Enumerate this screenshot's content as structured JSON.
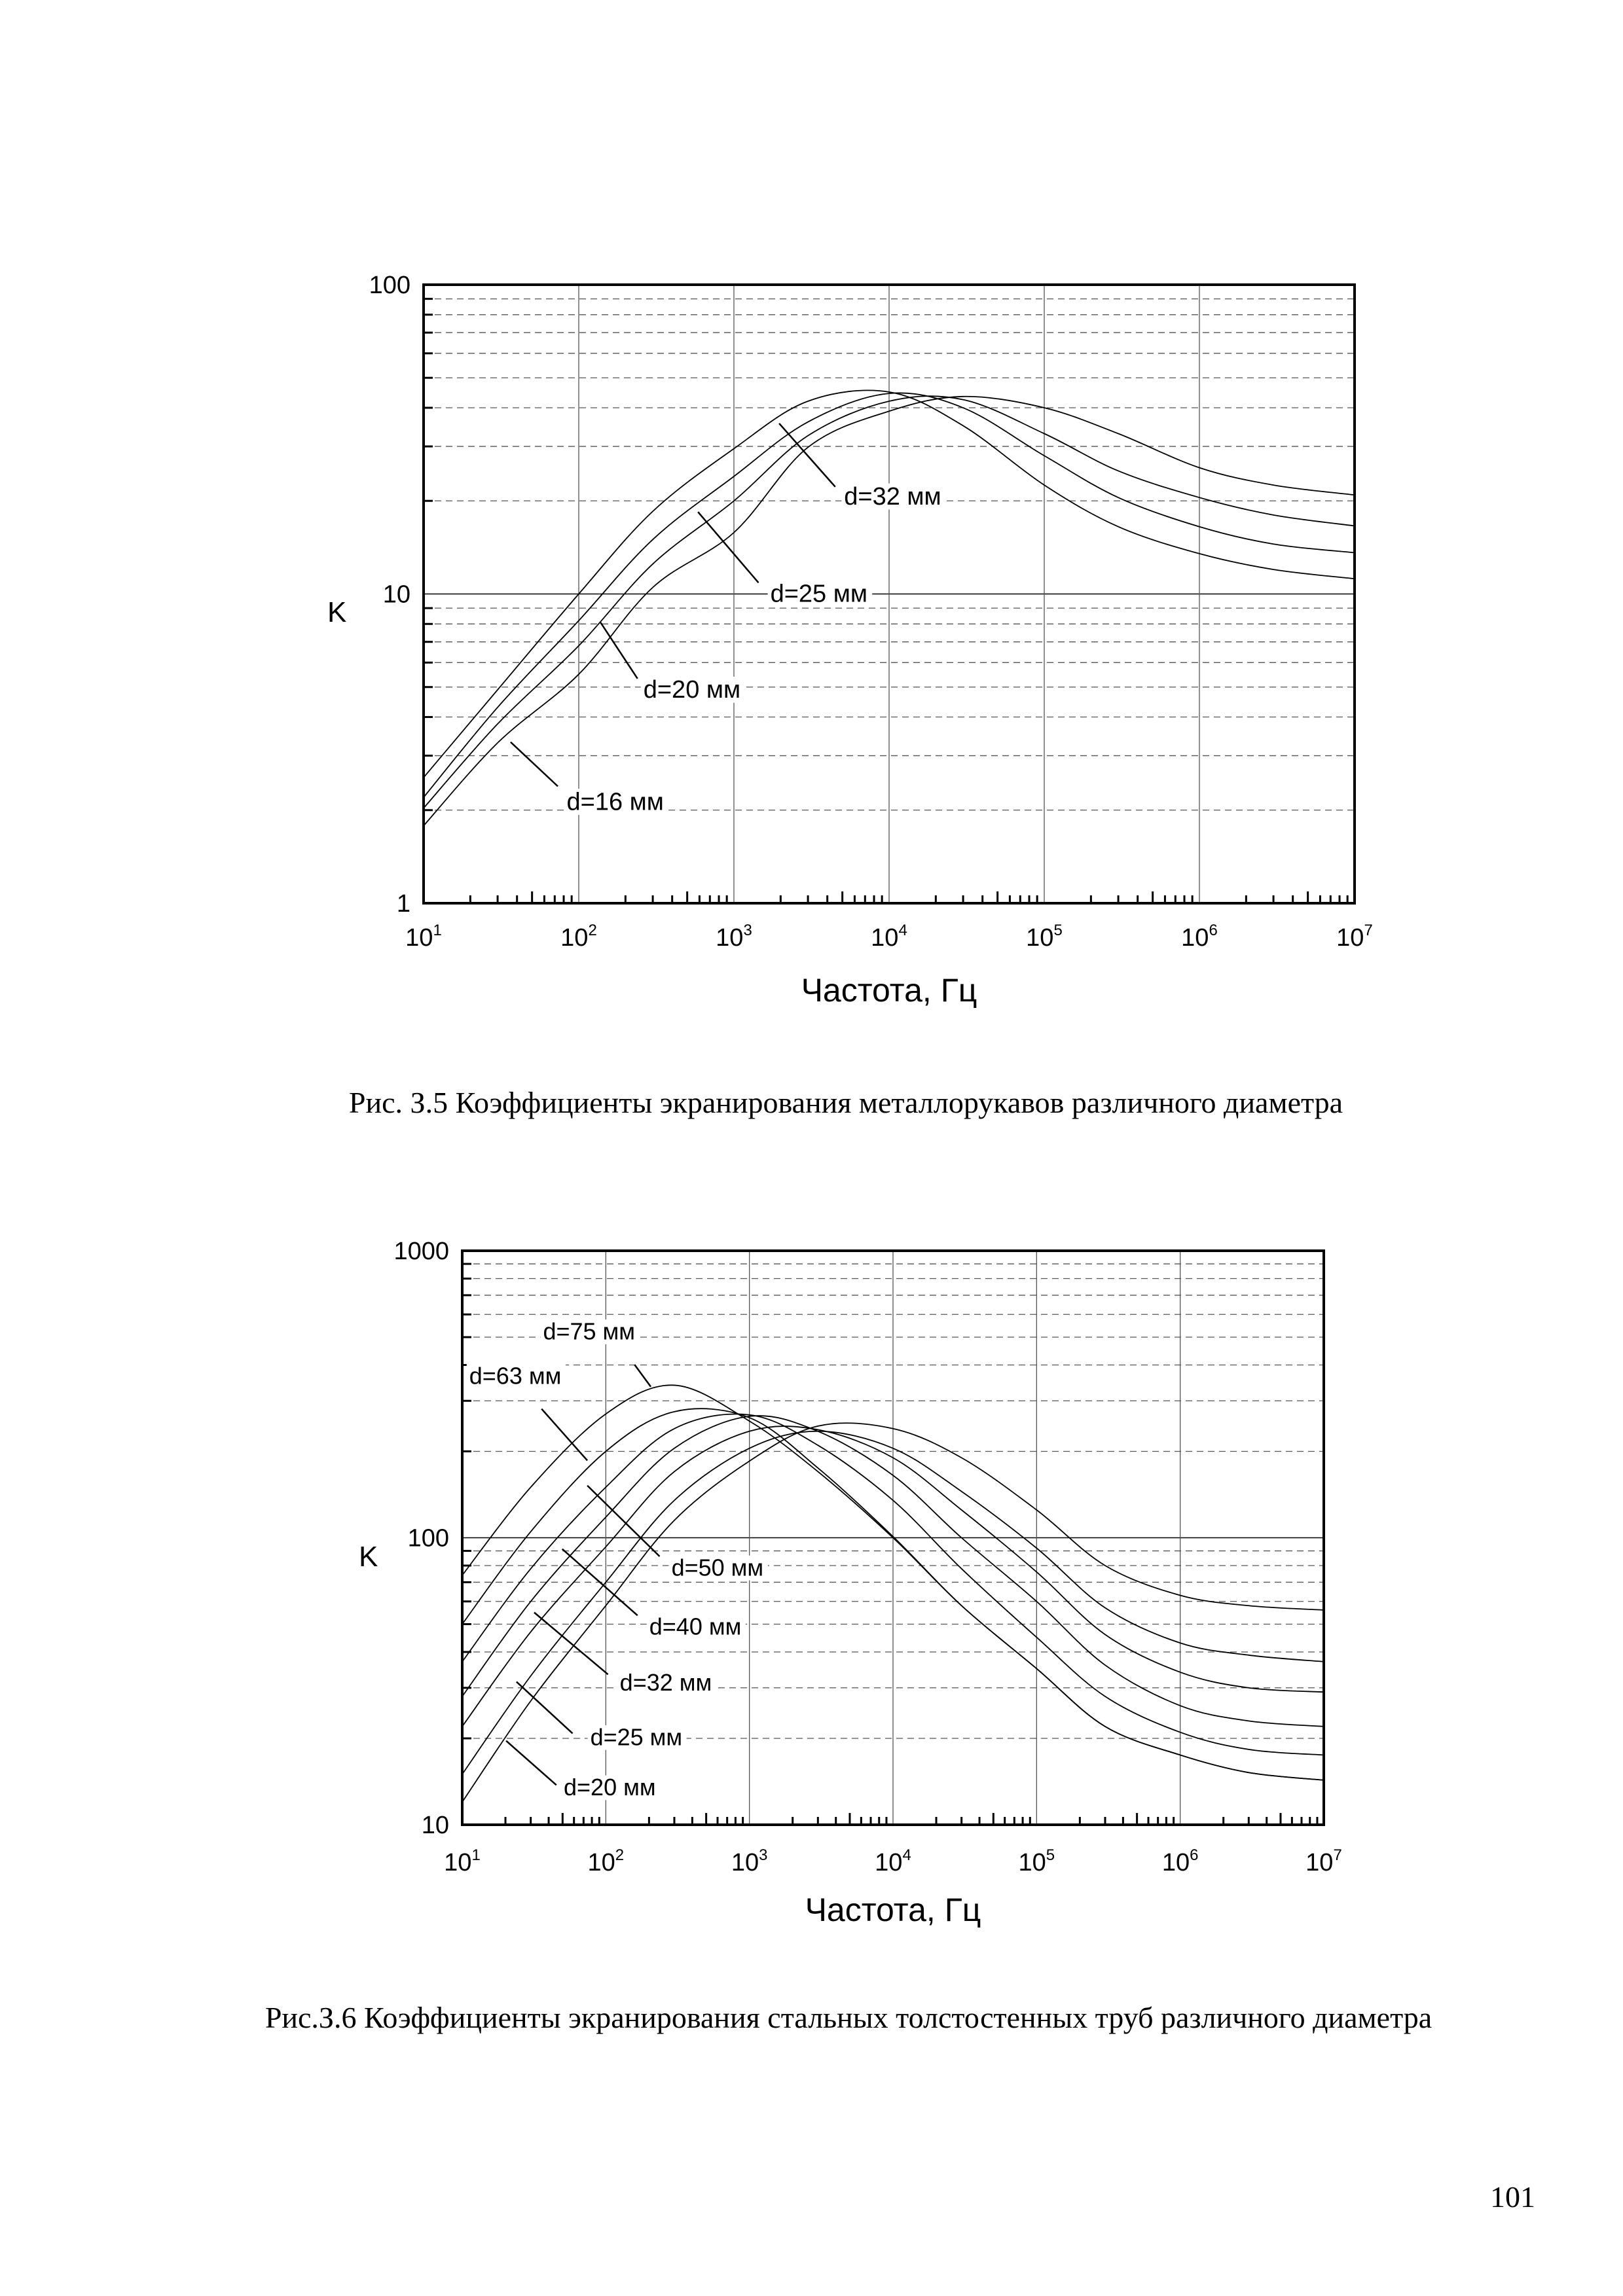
{
  "chart_data": [
    {
      "type": "line",
      "xlabel": "Частота, Гц",
      "ylabel": "K",
      "xscale": "log",
      "yscale": "log",
      "xlim": [
        10,
        10000000
      ],
      "ylim": [
        1,
        100
      ],
      "x_ticks": [
        "10^1",
        "10^2",
        "10^3",
        "10^4",
        "10^5",
        "10^6",
        "10^7"
      ],
      "y_ticks": [
        "1",
        "10",
        "100"
      ],
      "grid": true,
      "caption": "Рис. З.5 Коэффициенты экранирования металлорукавов различного диаметра",
      "x": [
        10,
        30,
        100,
        300,
        1000,
        3000,
        10000,
        30000,
        100000,
        300000,
        1000000,
        3000000,
        10000000
      ],
      "series": [
        {
          "name": "d=32 мм",
          "values": [
            2.55,
            4.9,
            10,
            18.5,
            29.5,
            42,
            45,
            35,
            22.5,
            16.5,
            13.5,
            12,
            11.2
          ]
        },
        {
          "name": "d=25 мм",
          "values": [
            2.2,
            4.3,
            8.2,
            15,
            24,
            36,
            44.5,
            40,
            28,
            20.5,
            16.5,
            14.5,
            13.6
          ]
        },
        {
          "name": "d=20 мм",
          "values": [
            2.03,
            3.8,
            6.8,
            12.5,
            20,
            32.5,
            42,
            42.5,
            33,
            25,
            20.5,
            18,
            16.6
          ]
        },
        {
          "name": "d=16 мм",
          "values": [
            1.78,
            3.3,
            5.5,
            10.5,
            15.8,
            29.8,
            39,
            43.5,
            40,
            33,
            25.6,
            22.5,
            20.9
          ]
        }
      ]
    },
    {
      "type": "line",
      "xlabel": "Частота, Гц",
      "ylabel": "K",
      "xscale": "log",
      "yscale": "log",
      "xlim": [
        10,
        10000000
      ],
      "ylim": [
        10,
        1000
      ],
      "x_ticks": [
        "10^1",
        "10^2",
        "10^3",
        "10^4",
        "10^5",
        "10^6",
        "10^7"
      ],
      "y_ticks": [
        "10",
        "100",
        "1000"
      ],
      "grid": true,
      "caption": "Рис.З.6 Коэффициенты экранирования стальных толстостенных труб различного диаметра",
      "x": [
        10,
        30,
        100,
        300,
        1000,
        3000,
        10000,
        30000,
        100000,
        300000,
        1000000,
        3000000,
        10000000
      ],
      "series": [
        {
          "name": "d=75 мм",
          "values": [
            74,
            150,
            270,
            340,
            255,
            170,
            100,
            58,
            35,
            22,
            17.5,
            15.2,
            14.3
          ]
        },
        {
          "name": "d=63 мм",
          "values": [
            50,
            105,
            200,
            275,
            262,
            175,
            101,
            58,
            35,
            22,
            17.5,
            15.2,
            14.3
          ]
        },
        {
          "name": "d=50 мм",
          "values": [
            37,
            78,
            150,
            240,
            268,
            210,
            135,
            78,
            45,
            28,
            21,
            18.3,
            17.5
          ]
        },
        {
          "name": "d=40 мм",
          "values": [
            28,
            60,
            118,
            205,
            265,
            235,
            165,
            100,
            60,
            36,
            26,
            23,
            22
          ]
        },
        {
          "name": "d=32 мм",
          "values": [
            22,
            47,
            93,
            170,
            235,
            238,
            190,
            125,
            76,
            46,
            34,
            30,
            29
          ]
        },
        {
          "name": "d=25 мм",
          "values": [
            15,
            33,
            70,
            135,
            205,
            235,
            205,
            145,
            92,
            57,
            43,
            39,
            37
          ]
        },
        {
          "name": "d=20 мм",
          "values": [
            12,
            27,
            58,
            115,
            185,
            245,
            240,
            190,
            125,
            80,
            63,
            58,
            56
          ]
        }
      ]
    }
  ],
  "page_number": "101"
}
